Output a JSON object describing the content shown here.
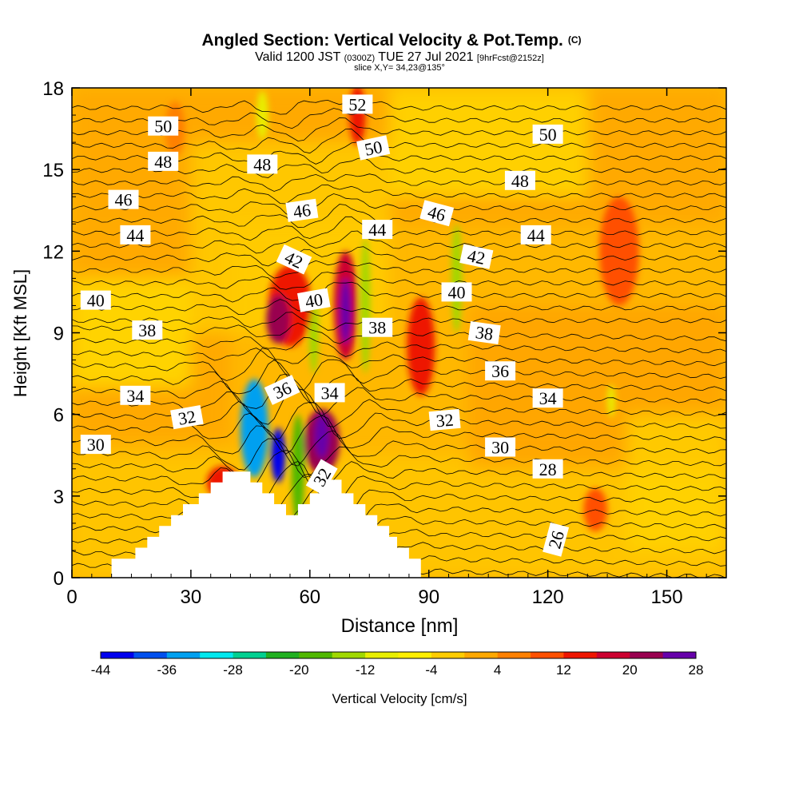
{
  "chart_data": {
    "type": "heatmap",
    "title": "Angled Section: Vertical Velocity & Pot.Temp.",
    "title_mark": "(C)",
    "subtitle_parts": [
      "Valid 1200 JST ",
      "(0300Z)",
      " TUE 27 Jul 2021 ",
      "[9hrFcst@2152z]"
    ],
    "slice_label": "slice X,Y= 34,23@135°",
    "xlabel": "Distance [nm]",
    "ylabel": "Height [Kft MSL]",
    "xlim": [
      0,
      165
    ],
    "ylim": [
      0,
      18
    ],
    "xticks": [
      0,
      30,
      60,
      90,
      120,
      150
    ],
    "yticks": [
      0,
      3,
      6,
      9,
      12,
      15,
      18
    ],
    "colorbar": {
      "label": "Vertical Velocity [cm/s]",
      "tick_labels": [
        -44,
        -36,
        -28,
        -20,
        -12,
        -4,
        4,
        12,
        20,
        28
      ],
      "colors": [
        "#0000ee",
        "#0050ee",
        "#00a0f0",
        "#00e8ee",
        "#00d090",
        "#20b020",
        "#50b800",
        "#a0d800",
        "#e8ee00",
        "#ffee00",
        "#ffcc00",
        "#ffa800",
        "#ff8000",
        "#ff5000",
        "#ee1500",
        "#cc0030",
        "#990050",
        "#6600aa"
      ]
    },
    "velocity_blobs": [
      {
        "x": 46,
        "y": 5.5,
        "rx": 3.5,
        "ry": 1.8,
        "value": -36
      },
      {
        "x": 52,
        "y": 4.5,
        "rx": 1.8,
        "ry": 1.0,
        "value": -44
      },
      {
        "x": 57,
        "y": 4.0,
        "rx": 1.6,
        "ry": 2.0,
        "value": -20
      },
      {
        "x": 74,
        "y": 10.0,
        "rx": 1.2,
        "ry": 2.5,
        "value": -16
      },
      {
        "x": 61,
        "y": 9.0,
        "rx": 1.2,
        "ry": 1.5,
        "value": -14
      },
      {
        "x": 97,
        "y": 11.0,
        "rx": 1.3,
        "ry": 2.0,
        "value": -14
      },
      {
        "x": 136,
        "y": 6.5,
        "rx": 1.0,
        "ry": 0.6,
        "value": -12
      },
      {
        "x": 48,
        "y": 17.0,
        "rx": 1.5,
        "ry": 0.9,
        "value": -10
      },
      {
        "x": 55,
        "y": 10.0,
        "rx": 5.5,
        "ry": 1.5,
        "value": 14
      },
      {
        "x": 52,
        "y": 9.5,
        "rx": 3.0,
        "ry": 0.9,
        "value": 20
      },
      {
        "x": 63,
        "y": 5.0,
        "rx": 4.5,
        "ry": 1.2,
        "value": 20
      },
      {
        "x": 63,
        "y": 5.2,
        "rx": 1.8,
        "ry": 0.8,
        "value": 26
      },
      {
        "x": 69,
        "y": 10.0,
        "rx": 3.0,
        "ry": 2.0,
        "value": 18
      },
      {
        "x": 69,
        "y": 9.8,
        "rx": 1.4,
        "ry": 1.2,
        "value": 28
      },
      {
        "x": 72,
        "y": 17.0,
        "rx": 2.0,
        "ry": 1.1,
        "value": 14
      },
      {
        "x": 88,
        "y": 8.5,
        "rx": 3.5,
        "ry": 1.8,
        "value": 12
      },
      {
        "x": 38,
        "y": 3.5,
        "rx": 4.0,
        "ry": 0.6,
        "value": 12
      },
      {
        "x": 138,
        "y": 12.0,
        "rx": 5.0,
        "ry": 2.0,
        "value": 8
      },
      {
        "x": 132,
        "y": 2.5,
        "rx": 3.0,
        "ry": 0.8,
        "value": 8
      },
      {
        "x": 26,
        "y": 16.5,
        "rx": 2.5,
        "ry": 1.0,
        "value": 6
      }
    ],
    "terrain": [
      [
        0,
        0
      ],
      [
        10,
        0
      ],
      [
        10,
        0.7
      ],
      [
        16,
        0.7
      ],
      [
        16,
        1.1
      ],
      [
        19,
        1.1
      ],
      [
        19,
        1.5
      ],
      [
        22,
        1.5
      ],
      [
        22,
        1.9
      ],
      [
        25,
        1.9
      ],
      [
        25,
        2.3
      ],
      [
        28,
        2.3
      ],
      [
        28,
        2.7
      ],
      [
        32,
        2.7
      ],
      [
        32,
        3.1
      ],
      [
        35,
        3.1
      ],
      [
        35,
        3.5
      ],
      [
        38,
        3.5
      ],
      [
        38,
        3.9
      ],
      [
        45,
        3.9
      ],
      [
        45,
        3.5
      ],
      [
        48,
        3.5
      ],
      [
        48,
        3.1
      ],
      [
        51,
        3.1
      ],
      [
        51,
        2.7
      ],
      [
        54,
        2.7
      ],
      [
        54,
        2.3
      ],
      [
        57,
        2.3
      ],
      [
        57,
        2.7
      ],
      [
        60,
        2.7
      ],
      [
        60,
        3.1
      ],
      [
        63,
        3.1
      ],
      [
        63,
        3.6
      ],
      [
        68,
        3.6
      ],
      [
        68,
        3.1
      ],
      [
        71,
        3.1
      ],
      [
        71,
        2.7
      ],
      [
        74,
        2.7
      ],
      [
        74,
        2.3
      ],
      [
        77,
        2.3
      ],
      [
        77,
        1.9
      ],
      [
        80,
        1.9
      ],
      [
        80,
        1.5
      ],
      [
        82,
        1.5
      ],
      [
        82,
        1.1
      ],
      [
        85,
        1.1
      ],
      [
        85,
        0.7
      ],
      [
        88,
        0.7
      ],
      [
        88,
        0
      ]
    ],
    "isentrope_labels": [
      {
        "x": 23,
        "y": 16.6,
        "text": "50",
        "rot": 0
      },
      {
        "x": 23,
        "y": 15.3,
        "text": "48",
        "rot": 0
      },
      {
        "x": 13,
        "y": 13.9,
        "text": "46",
        "rot": 0
      },
      {
        "x": 16,
        "y": 12.6,
        "text": "44",
        "rot": 0
      },
      {
        "x": 6,
        "y": 10.2,
        "text": "40",
        "rot": 0
      },
      {
        "x": 19,
        "y": 9.1,
        "text": "38",
        "rot": 0
      },
      {
        "x": 16,
        "y": 6.7,
        "text": "34",
        "rot": 0
      },
      {
        "x": 29,
        "y": 5.9,
        "text": "32",
        "rot": -10
      },
      {
        "x": 6,
        "y": 4.9,
        "text": "30",
        "rot": 0
      },
      {
        "x": 48,
        "y": 15.2,
        "text": "48",
        "rot": 0
      },
      {
        "x": 58,
        "y": 13.5,
        "text": "46",
        "rot": -8
      },
      {
        "x": 56,
        "y": 11.7,
        "text": "42",
        "rot": 25
      },
      {
        "x": 61,
        "y": 10.2,
        "text": "40",
        "rot": -10
      },
      {
        "x": 53,
        "y": 6.9,
        "text": "36",
        "rot": -25
      },
      {
        "x": 65,
        "y": 6.8,
        "text": "34",
        "rot": 0
      },
      {
        "x": 63,
        "y": 3.7,
        "text": "32",
        "rot": -60
      },
      {
        "x": 72,
        "y": 17.4,
        "text": "52",
        "rot": 0
      },
      {
        "x": 76,
        "y": 15.8,
        "text": "50",
        "rot": -12
      },
      {
        "x": 77,
        "y": 12.8,
        "text": "44",
        "rot": 0
      },
      {
        "x": 77,
        "y": 9.2,
        "text": "38",
        "rot": 0
      },
      {
        "x": 92,
        "y": 13.4,
        "text": "46",
        "rot": 15
      },
      {
        "x": 102,
        "y": 11.8,
        "text": "42",
        "rot": 12
      },
      {
        "x": 97,
        "y": 10.5,
        "text": "40",
        "rot": 0
      },
      {
        "x": 104,
        "y": 9.0,
        "text": "38",
        "rot": 8
      },
      {
        "x": 108,
        "y": 7.6,
        "text": "36",
        "rot": 0
      },
      {
        "x": 94,
        "y": 5.8,
        "text": "32",
        "rot": -5
      },
      {
        "x": 108,
        "y": 4.8,
        "text": "30",
        "rot": 0
      },
      {
        "x": 120,
        "y": 16.3,
        "text": "50",
        "rot": 0
      },
      {
        "x": 113,
        "y": 14.6,
        "text": "48",
        "rot": 0
      },
      {
        "x": 117,
        "y": 12.6,
        "text": "44",
        "rot": 0
      },
      {
        "x": 120,
        "y": 6.6,
        "text": "34",
        "rot": 0
      },
      {
        "x": 120,
        "y": 4.0,
        "text": "28",
        "rot": 0
      },
      {
        "x": 122,
        "y": 1.4,
        "text": "26",
        "rot": -75
      }
    ]
  }
}
